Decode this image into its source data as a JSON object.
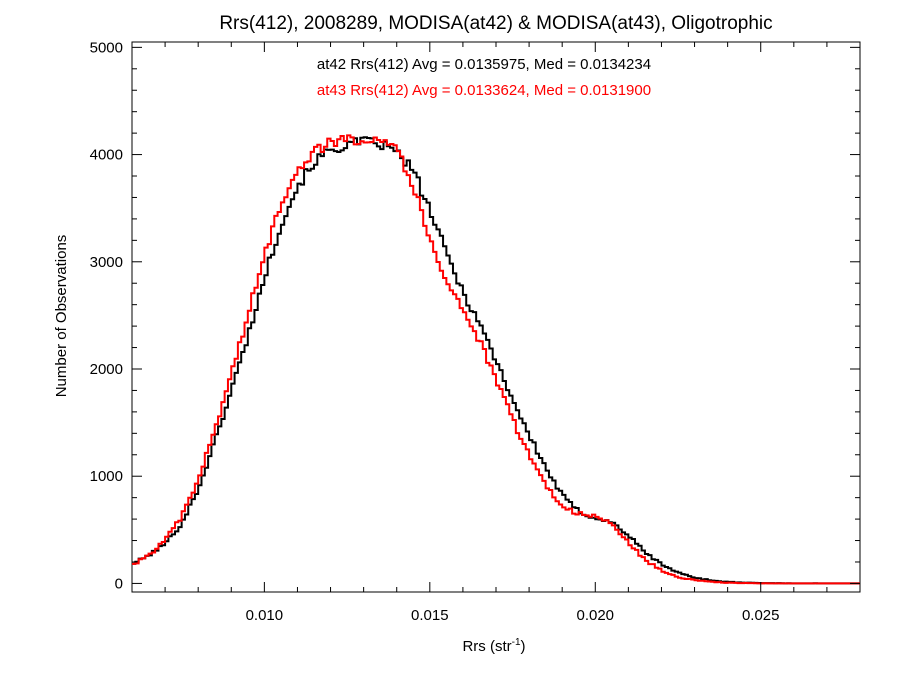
{
  "chart_data": {
    "type": "line",
    "step": true,
    "title": "Rrs(412), 2008289, MODISA(at42) & MODISA(at43), Oligotrophic",
    "xlabel": {
      "base": "Rrs (str",
      "sup": "-1",
      "tail": ")"
    },
    "ylabel": "Number of Observations",
    "xlim": [
      0.006,
      0.028
    ],
    "ylim": [
      -80,
      5050
    ],
    "xticks": [
      0.01,
      0.015,
      0.02,
      0.025
    ],
    "xtick_labels": [
      "0.010",
      "0.015",
      "0.020",
      "0.025"
    ],
    "yticks": [
      0,
      1000,
      2000,
      3000,
      4000,
      5000
    ],
    "ytick_labels": [
      "0",
      "1000",
      "2000",
      "3000",
      "4000",
      "5000"
    ],
    "grid": false,
    "legend_position": "top-center",
    "annotations": [
      {
        "text": "at42 Rrs(412) Avg = 0.0135975, Med = 0.0134234",
        "color": "#000000"
      },
      {
        "text": "at43 Rrs(412) Avg = 0.0133624, Med = 0.0131900",
        "color": "#ff0000"
      }
    ],
    "series": [
      {
        "color": "#000000",
        "points": [
          [
            0.006,
            180
          ],
          [
            0.0065,
            260
          ],
          [
            0.007,
            370
          ],
          [
            0.0075,
            560
          ],
          [
            0.008,
            880
          ],
          [
            0.0085,
            1320
          ],
          [
            0.009,
            1800
          ],
          [
            0.0095,
            2300
          ],
          [
            0.01,
            2850
          ],
          [
            0.0105,
            3350
          ],
          [
            0.011,
            3700
          ],
          [
            0.0115,
            3930
          ],
          [
            0.012,
            4040
          ],
          [
            0.0125,
            4090
          ],
          [
            0.013,
            4120
          ],
          [
            0.0135,
            4100
          ],
          [
            0.014,
            4020
          ],
          [
            0.0145,
            3850
          ],
          [
            0.015,
            3480
          ],
          [
            0.0155,
            3080
          ],
          [
            0.016,
            2720
          ],
          [
            0.0165,
            2430
          ],
          [
            0.017,
            2080
          ],
          [
            0.0175,
            1720
          ],
          [
            0.018,
            1380
          ],
          [
            0.0185,
            1080
          ],
          [
            0.019,
            820
          ],
          [
            0.0195,
            670
          ],
          [
            0.02,
            610
          ],
          [
            0.0205,
            570
          ],
          [
            0.021,
            450
          ],
          [
            0.0215,
            290
          ],
          [
            0.022,
            180
          ],
          [
            0.0225,
            100
          ],
          [
            0.023,
            55
          ],
          [
            0.0235,
            28
          ],
          [
            0.024,
            14
          ],
          [
            0.0245,
            7
          ],
          [
            0.025,
            3
          ],
          [
            0.026,
            1
          ],
          [
            0.028,
            0
          ]
        ]
      },
      {
        "color": "#ff0000",
        "points": [
          [
            0.006,
            170
          ],
          [
            0.0065,
            260
          ],
          [
            0.007,
            400
          ],
          [
            0.0075,
            620
          ],
          [
            0.008,
            960
          ],
          [
            0.0085,
            1430
          ],
          [
            0.009,
            1950
          ],
          [
            0.0095,
            2500
          ],
          [
            0.01,
            3050
          ],
          [
            0.0105,
            3550
          ],
          [
            0.011,
            3870
          ],
          [
            0.0115,
            4030
          ],
          [
            0.012,
            4110
          ],
          [
            0.0125,
            4140
          ],
          [
            0.013,
            4150
          ],
          [
            0.0135,
            4160
          ],
          [
            0.014,
            4080
          ],
          [
            0.0145,
            3700
          ],
          [
            0.015,
            3220
          ],
          [
            0.0155,
            2830
          ],
          [
            0.016,
            2560
          ],
          [
            0.0165,
            2260
          ],
          [
            0.017,
            1900
          ],
          [
            0.0175,
            1530
          ],
          [
            0.018,
            1200
          ],
          [
            0.0185,
            920
          ],
          [
            0.019,
            720
          ],
          [
            0.0195,
            650
          ],
          [
            0.02,
            620
          ],
          [
            0.0205,
            560
          ],
          [
            0.021,
            380
          ],
          [
            0.0215,
            220
          ],
          [
            0.022,
            120
          ],
          [
            0.0225,
            60
          ],
          [
            0.023,
            30
          ],
          [
            0.0235,
            14
          ],
          [
            0.024,
            6
          ],
          [
            0.0245,
            3
          ],
          [
            0.025,
            1
          ],
          [
            0.026,
            0
          ],
          [
            0.028,
            0
          ]
        ]
      }
    ]
  }
}
